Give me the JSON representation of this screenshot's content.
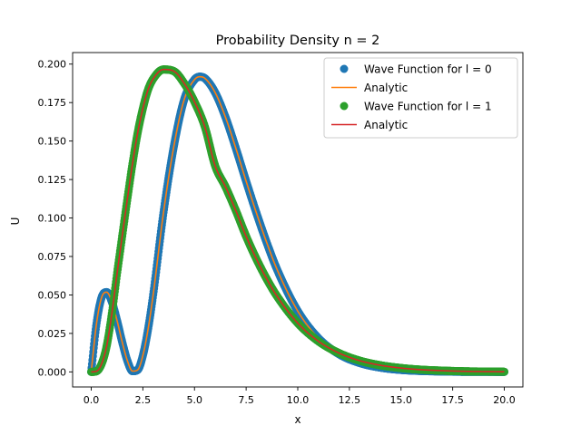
{
  "chart_data": {
    "type": "line",
    "title": "Probability Density n = 2",
    "xlabel": "x",
    "ylabel": "U",
    "xlim": [
      -0.9,
      20.9
    ],
    "ylim": [
      -0.0098,
      0.2075
    ],
    "x_ticks": [
      0.0,
      2.5,
      5.0,
      7.5,
      10.0,
      12.5,
      15.0,
      17.5,
      20.0
    ],
    "x_tick_labels": [
      "0.0",
      "2.5",
      "5.0",
      "7.5",
      "10.0",
      "12.5",
      "15.0",
      "17.5",
      "20.0"
    ],
    "y_ticks": [
      0.0,
      0.025,
      0.05,
      0.075,
      0.1,
      0.125,
      0.15,
      0.175,
      0.2
    ],
    "y_tick_labels": [
      "0.000",
      "0.025",
      "0.050",
      "0.075",
      "0.100",
      "0.125",
      "0.150",
      "0.175",
      "0.200"
    ],
    "grid": false,
    "legend_position": "top-right",
    "series": [
      {
        "name": "Wave Function for l = 0",
        "kind": "markers",
        "color": "#1f77b4",
        "x": [
          0.0,
          0.25,
          0.5,
          0.75,
          1.0,
          1.25,
          1.5,
          1.75,
          2.0,
          2.25,
          2.5,
          2.75,
          3.0,
          3.5,
          4.0,
          4.5,
          5.0,
          5.25,
          5.5,
          6.0,
          6.5,
          7.0,
          7.5,
          8.0,
          8.5,
          9.0,
          10.0,
          11.0,
          12.0,
          13.0,
          14.0,
          15.0,
          16.0,
          17.0,
          18.0,
          19.0,
          20.0
        ],
        "y": [
          0.0,
          0.0308,
          0.0482,
          0.0518,
          0.0455,
          0.0334,
          0.0194,
          0.0073,
          0.0005,
          0.0013,
          0.0106,
          0.0275,
          0.0502,
          0.1036,
          0.1465,
          0.1769,
          0.1899,
          0.1918,
          0.1908,
          0.1815,
          0.1655,
          0.1454,
          0.1239,
          0.1032,
          0.0839,
          0.0665,
          0.0395,
          0.0219,
          0.0115,
          0.0058,
          0.0028,
          0.0013,
          0.0006,
          0.0003,
          0.0001,
          0.0001,
          0.0
        ]
      },
      {
        "name": "Analytic",
        "kind": "line",
        "color": "#ff7f0e",
        "x": [
          0.0,
          0.25,
          0.5,
          0.75,
          1.0,
          1.25,
          1.5,
          1.75,
          2.0,
          2.25,
          2.5,
          2.75,
          3.0,
          3.5,
          4.0,
          4.5,
          5.0,
          5.25,
          5.5,
          6.0,
          6.5,
          7.0,
          7.5,
          8.0,
          8.5,
          9.0,
          10.0,
          11.0,
          12.0,
          13.0,
          14.0,
          15.0,
          16.0,
          17.0,
          18.0,
          19.0,
          20.0
        ],
        "y": [
          0.0,
          0.0308,
          0.0482,
          0.0518,
          0.0455,
          0.0334,
          0.0194,
          0.0073,
          0.0005,
          0.0013,
          0.0106,
          0.0275,
          0.0502,
          0.1036,
          0.1465,
          0.1769,
          0.1899,
          0.1918,
          0.1908,
          0.1815,
          0.1655,
          0.1454,
          0.1239,
          0.1032,
          0.0839,
          0.0665,
          0.0395,
          0.0219,
          0.0115,
          0.0058,
          0.0028,
          0.0013,
          0.0006,
          0.0003,
          0.0001,
          0.0001,
          0.0
        ]
      },
      {
        "name": "Wave Function for l = 1",
        "kind": "markers",
        "color": "#2ca02c",
        "x": [
          0.0,
          0.25,
          0.5,
          0.75,
          1.0,
          1.25,
          1.5,
          1.75,
          2.0,
          2.25,
          2.5,
          2.75,
          3.0,
          3.5,
          4.0,
          4.5,
          5.0,
          5.5,
          6.0,
          6.5,
          7.0,
          7.5,
          8.0,
          8.5,
          9.0,
          10.0,
          11.0,
          12.0,
          13.0,
          14.0,
          15.0,
          16.0,
          17.0,
          18.0,
          19.0,
          20.0
        ],
        "y": [
          0.0,
          0.0004,
          0.0051,
          0.0169,
          0.0379,
          0.0637,
          0.0882,
          0.1123,
          0.1353,
          0.1554,
          0.1711,
          0.1833,
          0.1904,
          0.1965,
          0.1954,
          0.1875,
          0.1755,
          0.1593,
          0.1339,
          0.1203,
          0.1049,
          0.0881,
          0.0733,
          0.0603,
          0.0491,
          0.0317,
          0.0199,
          0.0122,
          0.0073,
          0.0043,
          0.0025,
          0.0014,
          0.0008,
          0.0004,
          0.0002,
          0.0001
        ]
      },
      {
        "name": "Analytic",
        "kind": "line",
        "color": "#d62728",
        "x": [
          0.0,
          0.25,
          0.5,
          0.75,
          1.0,
          1.25,
          1.5,
          1.75,
          2.0,
          2.25,
          2.5,
          2.75,
          3.0,
          3.5,
          4.0,
          4.5,
          5.0,
          5.5,
          6.0,
          6.5,
          7.0,
          7.5,
          8.0,
          8.5,
          9.0,
          10.0,
          11.0,
          12.0,
          13.0,
          14.0,
          15.0,
          16.0,
          17.0,
          18.0,
          19.0,
          20.0
        ],
        "y": [
          0.0,
          0.0004,
          0.0051,
          0.0169,
          0.0379,
          0.0637,
          0.0882,
          0.1123,
          0.1353,
          0.1554,
          0.1711,
          0.1833,
          0.1904,
          0.1965,
          0.1954,
          0.1875,
          0.1755,
          0.1593,
          0.1339,
          0.1203,
          0.1049,
          0.0881,
          0.0733,
          0.0603,
          0.0491,
          0.0317,
          0.0199,
          0.0122,
          0.0073,
          0.0043,
          0.0025,
          0.0014,
          0.0008,
          0.0004,
          0.0002,
          0.0001
        ]
      }
    ]
  }
}
